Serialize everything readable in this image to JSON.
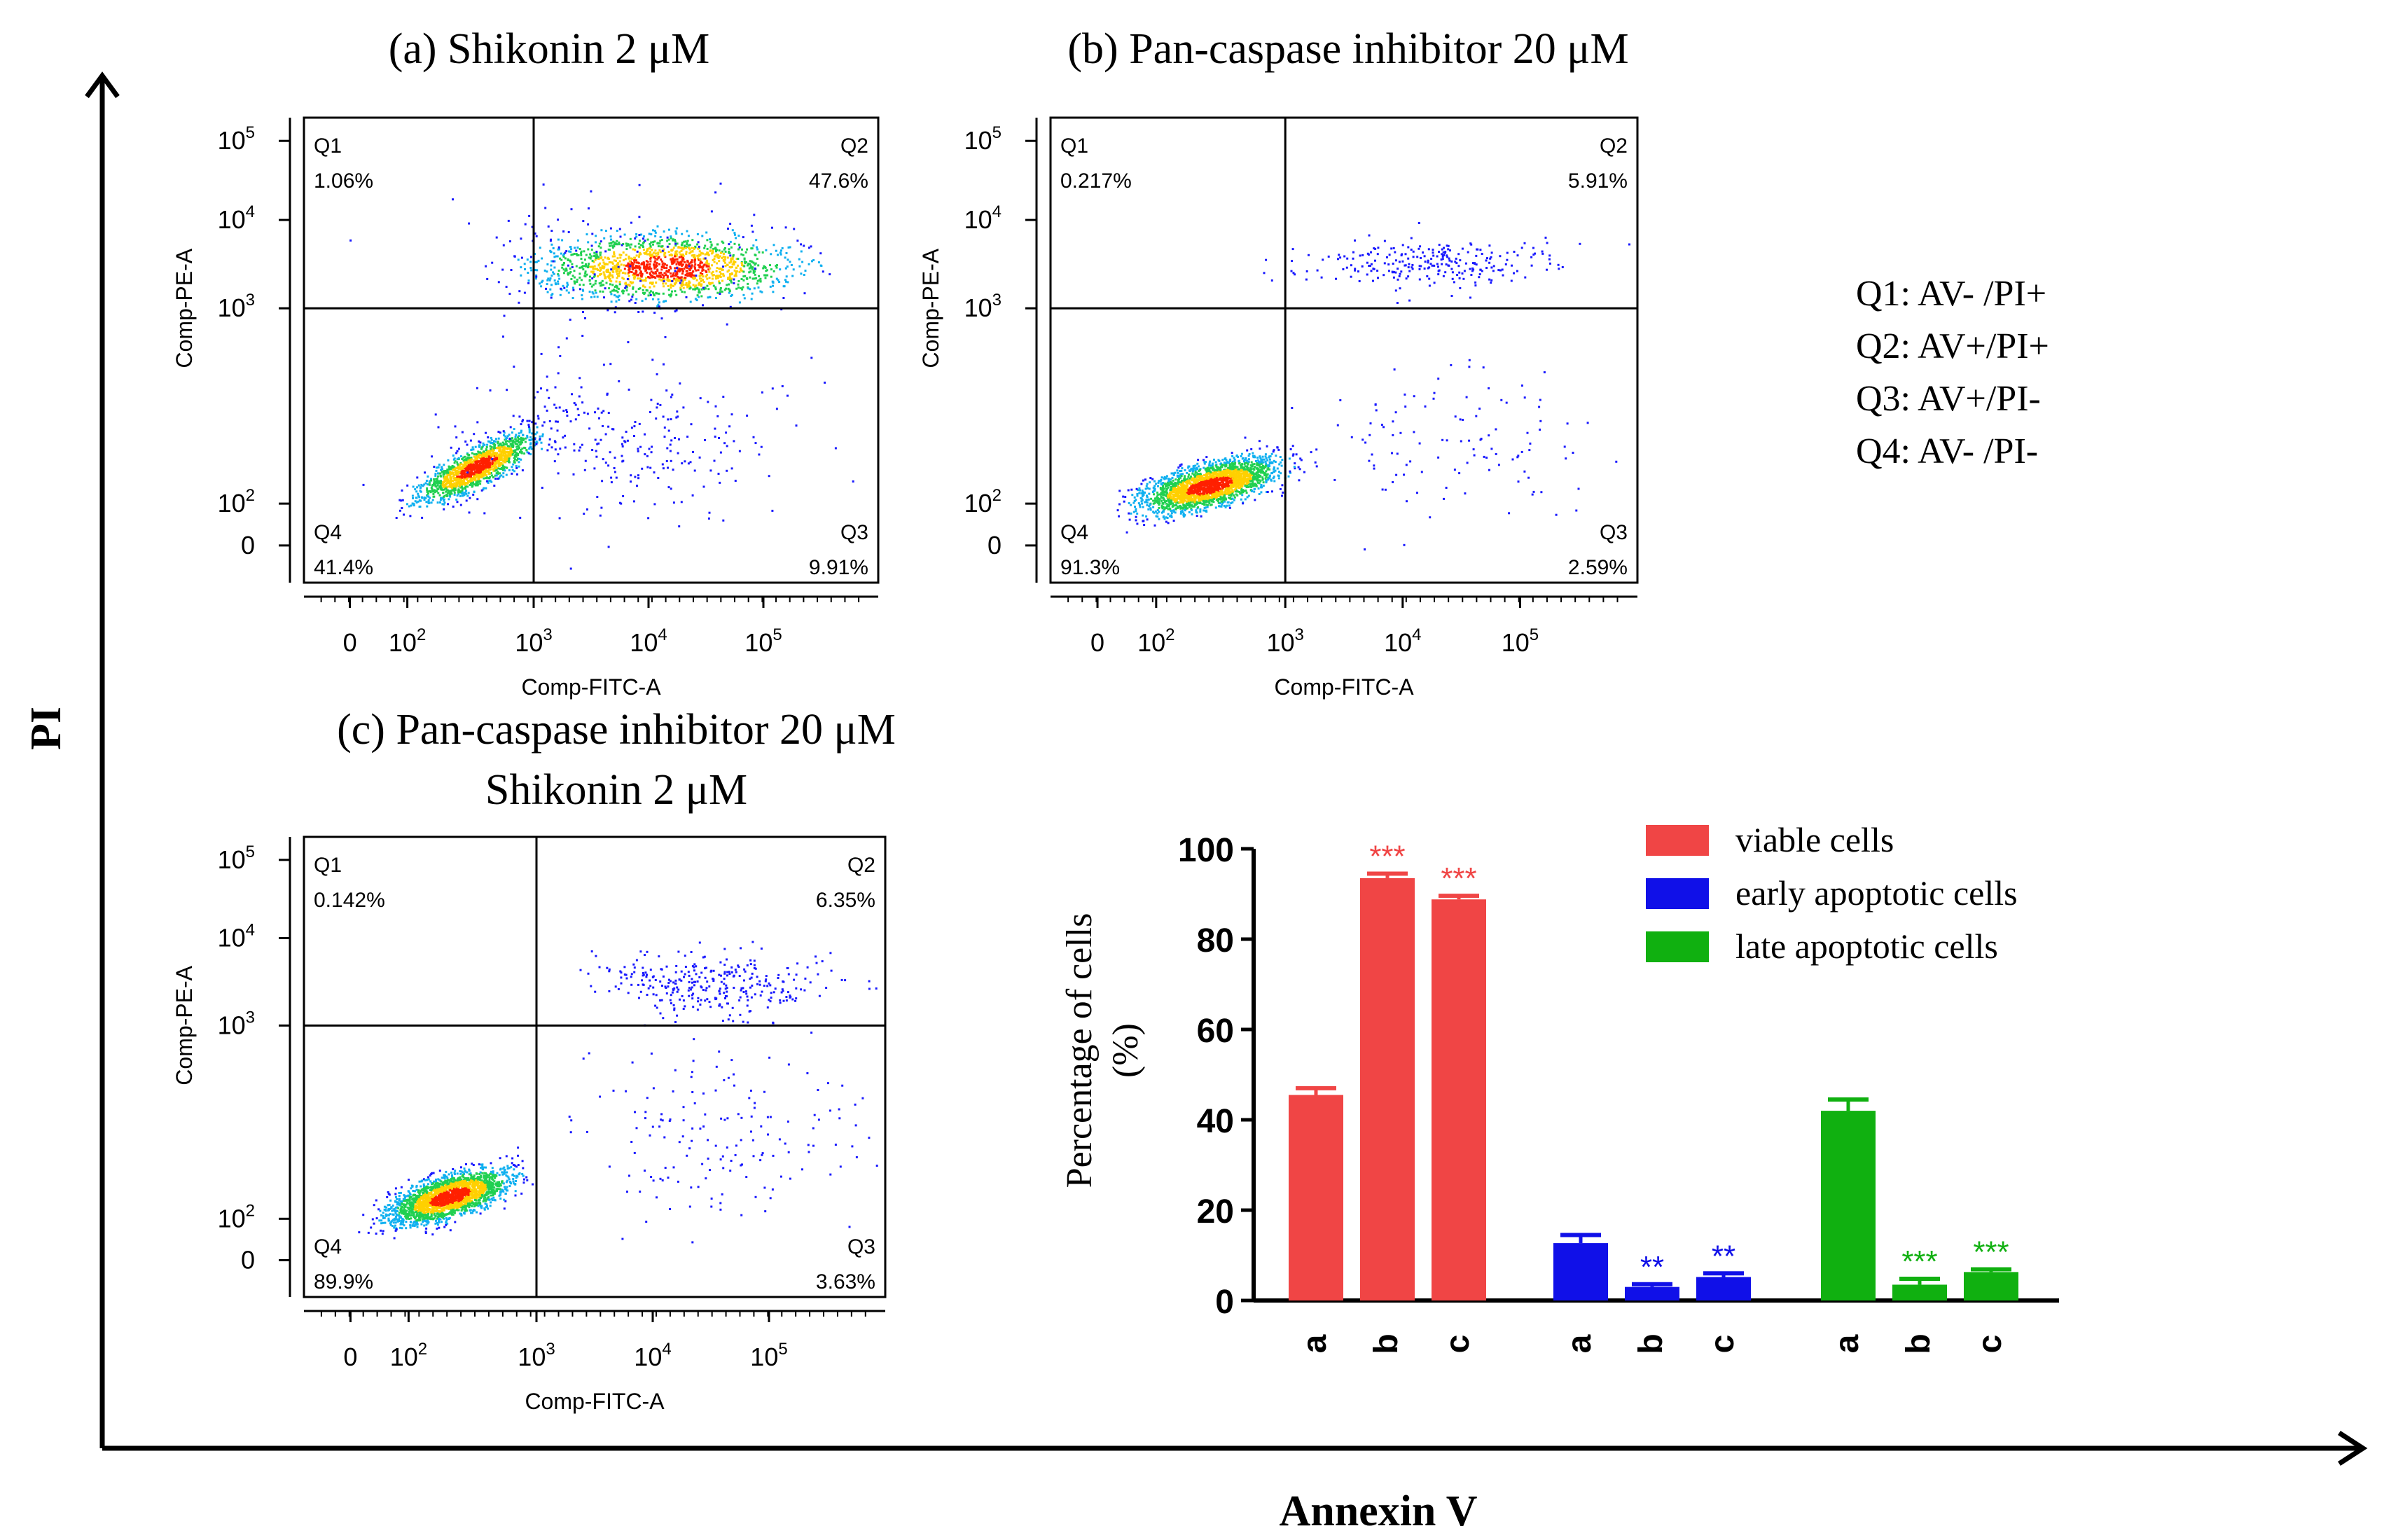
{
  "figure": {
    "outer_x_label": "Annexin V",
    "outer_y_label": "PI",
    "quadrant_legend": [
      "Q1: AV- /PI+",
      "Q2: AV+/PI+",
      "Q3: AV+/PI-",
      "Q4: AV- /PI-"
    ]
  },
  "flow_panels": [
    {
      "title_lines": [
        "(a) Shikonin 2 μM"
      ],
      "x_label": "Comp-FITC-A",
      "y_label": "Comp-PE-A",
      "quadrants": [
        {
          "name": "Q1",
          "percent": "1.06%"
        },
        {
          "name": "Q2",
          "percent": "47.6%"
        },
        {
          "name": "Q3",
          "percent": "9.91%"
        },
        {
          "name": "Q4",
          "percent": "41.4%"
        }
      ]
    },
    {
      "title_lines": [
        "(b) Pan-caspase  inhibitor 20 μM"
      ],
      "x_label": "Comp-FITC-A",
      "y_label": "Comp-PE-A",
      "quadrants": [
        {
          "name": "Q1",
          "percent": "0.217%"
        },
        {
          "name": "Q2",
          "percent": "5.91%"
        },
        {
          "name": "Q3",
          "percent": "2.59%"
        },
        {
          "name": "Q4",
          "percent": "91.3%"
        }
      ]
    },
    {
      "title_lines": [
        "(c) Pan-caspase  inhibitor 20 μM",
        "Shikonin 2 μM"
      ],
      "x_label": "Comp-FITC-A",
      "y_label": "Comp-PE-A",
      "quadrants": [
        {
          "name": "Q1",
          "percent": "0.142%"
        },
        {
          "name": "Q2",
          "percent": "6.35%"
        },
        {
          "name": "Q3",
          "percent": "3.63%"
        },
        {
          "name": "Q4",
          "percent": "89.9%"
        }
      ]
    }
  ],
  "flow_axis": {
    "x_ticks": [
      "0",
      "10^2",
      "10^3",
      "10^4",
      "10^5"
    ],
    "y_ticks": [
      "0",
      "10^2",
      "10^3",
      "10^4",
      "10^5"
    ]
  },
  "chart_data": {
    "type": "bar",
    "title": "",
    "xlabel": "",
    "ylabel": "Percentage of cells (%)",
    "ylim": [
      0,
      100
    ],
    "yticks": [
      0,
      20,
      40,
      60,
      80,
      100
    ],
    "groups": [
      {
        "series": "viable cells",
        "categories": [
          "a",
          "b",
          "c"
        ],
        "values": [
          45.5,
          93.5,
          88.8
        ],
        "errors": [
          1.5,
          1.0,
          0.8
        ],
        "significance": [
          "",
          "***",
          "***"
        ]
      },
      {
        "series": "early apoptotic cells",
        "categories": [
          "a",
          "b",
          "c"
        ],
        "values": [
          12.7,
          3.0,
          5.2
        ],
        "errors": [
          1.8,
          0.6,
          0.8
        ],
        "significance": [
          "",
          "**",
          "**"
        ]
      },
      {
        "series": "late apoptotic cells",
        "categories": [
          "a",
          "b",
          "c"
        ],
        "values": [
          42.0,
          3.5,
          6.3
        ],
        "errors": [
          2.5,
          1.3,
          0.6
        ],
        "significance": [
          "",
          "***",
          "***"
        ]
      }
    ],
    "legend": [
      "viable cells",
      "early apoptotic cells",
      "late apoptotic cells"
    ],
    "colors": [
      "#f04545",
      "#1010e8",
      "#10b010"
    ],
    "legend_position": "top-right"
  }
}
